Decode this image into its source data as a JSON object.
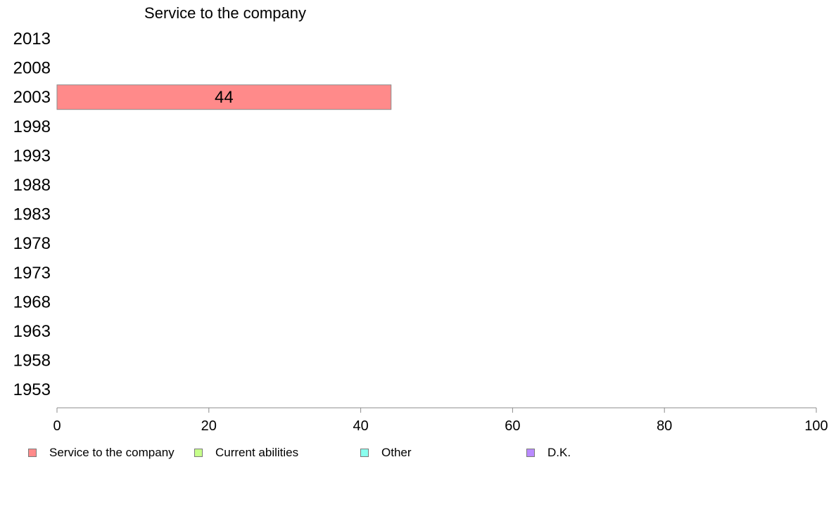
{
  "chart_data": {
    "type": "bar",
    "orientation": "horizontal",
    "stacked": true,
    "title": "Service to the company",
    "categories": [
      "2013",
      "2008",
      "2003",
      "1998",
      "1993",
      "1988",
      "1983",
      "1978",
      "1973",
      "1968",
      "1963",
      "1958",
      "1953"
    ],
    "series": [
      {
        "name": "Service to the company",
        "color": "#ff8a8a",
        "values": [
          null,
          null,
          44,
          null,
          null,
          null,
          null,
          null,
          null,
          null,
          null,
          null,
          null
        ]
      },
      {
        "name": "Current abilities",
        "color": "#c6ff8a",
        "values": [
          null,
          null,
          null,
          null,
          null,
          null,
          null,
          null,
          null,
          null,
          null,
          null,
          null
        ]
      },
      {
        "name": "Other",
        "color": "#8affee",
        "values": [
          null,
          null,
          null,
          null,
          null,
          null,
          null,
          null,
          null,
          null,
          null,
          null,
          null
        ]
      },
      {
        "name": "D.K.",
        "color": "#b98aff",
        "values": [
          null,
          null,
          null,
          null,
          null,
          null,
          null,
          null,
          null,
          null,
          null,
          null,
          null
        ]
      }
    ],
    "data_labels": [
      {
        "category": "2003",
        "series": "Service to the company",
        "text": "44"
      }
    ],
    "xlim": [
      0,
      100
    ],
    "xticks": [
      "0",
      "20",
      "40",
      "60",
      "80",
      "100"
    ],
    "xlabel": "",
    "ylabel": "",
    "grid": false,
    "legend_position": "bottom"
  }
}
